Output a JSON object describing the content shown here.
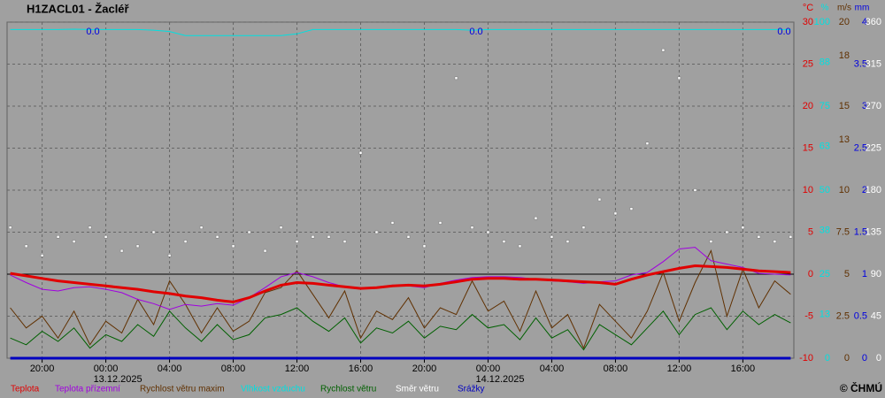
{
  "chart_data": {
    "type": "line",
    "title": "H1ZACL01 - Žacléř",
    "copyright": "© ČHMÚ",
    "x": [
      -6,
      -5,
      -4,
      -3,
      -2,
      -1,
      0,
      1,
      2,
      3,
      4,
      5,
      6,
      7,
      8,
      9,
      10,
      11,
      12,
      13,
      14,
      15,
      16,
      17,
      18,
      19,
      20,
      21,
      22,
      23,
      24,
      25,
      26,
      27,
      28,
      29,
      30,
      31,
      32,
      33,
      34,
      35,
      36,
      37,
      38,
      39,
      40,
      41,
      42,
      43
    ],
    "xlim": [
      -6.2,
      43.2
    ],
    "xticks": [
      {
        "value": -4,
        "label": "20:00"
      },
      {
        "value": 0,
        "label": "00:00"
      },
      {
        "value": 4,
        "label": "04:00"
      },
      {
        "value": 8,
        "label": "08:00"
      },
      {
        "value": 12,
        "label": "12:00"
      },
      {
        "value": 16,
        "label": "16:00"
      },
      {
        "value": 20,
        "label": "20:00"
      },
      {
        "value": 24,
        "label": "00:00"
      },
      {
        "value": 28,
        "label": "04:00"
      },
      {
        "value": 32,
        "label": "08:00"
      },
      {
        "value": 36,
        "label": "12:00"
      },
      {
        "value": 40,
        "label": "16:00"
      }
    ],
    "date_labels": [
      {
        "value": 0,
        "label": "13.12.2025"
      },
      {
        "value": 24,
        "label": "14.12.2025"
      }
    ],
    "y_unit": "°C",
    "y_color": "#e00000",
    "ylim": [
      -10,
      30
    ],
    "yticks": [
      -10,
      -5,
      0,
      5,
      10,
      15,
      20,
      25,
      30
    ],
    "grid": true,
    "extra_axes": [
      {
        "unit": "%",
        "color": "#00e0e0",
        "lim": [
          0,
          100
        ],
        "ticks": [
          0,
          13,
          25,
          38,
          50,
          63,
          75,
          88,
          100
        ]
      },
      {
        "unit": "m/s",
        "color": "#603000",
        "lim": [
          0,
          20
        ],
        "ticks": [
          0,
          2.5,
          5,
          7.5,
          10,
          13,
          15,
          18,
          20
        ]
      },
      {
        "unit": "mm",
        "color": "#0000e0",
        "lim": [
          0,
          4
        ],
        "ticks": [
          0,
          0.5,
          1,
          1.5,
          2,
          2.5,
          3,
          3.5,
          4
        ]
      },
      {
        "color": "#ffffff",
        "lim": [
          0,
          360
        ],
        "ticks": [
          0,
          45,
          90,
          135,
          180,
          225,
          270,
          315,
          360
        ]
      }
    ],
    "precip_labels": [
      "0.0",
      "0.0",
      "0.0"
    ],
    "series": [
      {
        "name": "Teplota",
        "color": "#e00000",
        "axis": "y",
        "style": "thick",
        "values": [
          0.1,
          -0.2,
          -0.5,
          -0.8,
          -1.0,
          -1.2,
          -1.4,
          -1.6,
          -1.8,
          -2.1,
          -2.3,
          -2.6,
          -2.8,
          -3.1,
          -3.3,
          -2.8,
          -2.0,
          -1.3,
          -1.0,
          -1.1,
          -1.3,
          -1.5,
          -1.7,
          -1.6,
          -1.4,
          -1.3,
          -1.4,
          -1.2,
          -0.9,
          -0.6,
          -0.5,
          -0.5,
          -0.6,
          -0.6,
          -0.7,
          -0.8,
          -0.9,
          -1.0,
          -1.2,
          -0.6,
          -0.1,
          0.3,
          0.7,
          1.0,
          0.9,
          0.8,
          0.6,
          0.4,
          0.3,
          0.2
        ]
      },
      {
        "name": "Teplota přízemní",
        "color": "#a000e0",
        "axis": "y",
        "style": "line",
        "values": [
          -0.1,
          -1.0,
          -1.8,
          -2.0,
          -1.6,
          -1.5,
          -1.8,
          -2.2,
          -3.0,
          -3.5,
          -4.2,
          -3.6,
          -3.8,
          -3.5,
          -3.7,
          -2.8,
          -1.6,
          -0.3,
          0.2,
          -0.3,
          -1.0,
          -1.5,
          -1.6,
          -1.6,
          -1.3,
          -1.4,
          -1.6,
          -1.1,
          -0.7,
          -0.4,
          -0.3,
          -0.3,
          -0.4,
          -0.6,
          -0.8,
          -0.9,
          -1.1,
          -0.9,
          -0.8,
          -0.1,
          0.2,
          1.5,
          3.0,
          3.2,
          1.6,
          1.2,
          0.8,
          0.1,
          0.0,
          -0.1
        ]
      },
      {
        "name": "Rychlost větru maxim",
        "color": "#603000",
        "axis": 1,
        "style": "line",
        "values": [
          3.0,
          1.8,
          2.5,
          1.2,
          2.8,
          0.8,
          2.2,
          1.5,
          3.5,
          2.0,
          4.6,
          3.2,
          1.5,
          3.0,
          1.6,
          2.2,
          3.9,
          4.2,
          5.2,
          3.8,
          2.4,
          4.0,
          1.2,
          2.8,
          2.3,
          3.6,
          1.8,
          3.0,
          2.6,
          4.6,
          2.8,
          3.4,
          1.6,
          4.0,
          1.8,
          2.6,
          0.6,
          3.2,
          2.2,
          1.2,
          2.8,
          5.1,
          2.2,
          4.5,
          6.4,
          2.5,
          5.3,
          3.0,
          4.6,
          3.8
        ]
      },
      {
        "name": "Vlhkost vzduchu",
        "color": "#00e0e0",
        "axis": 0,
        "style": "line",
        "values": [
          97.8,
          97.8,
          97.8,
          97.8,
          97.9,
          97.8,
          97.8,
          97.8,
          97.8,
          97.6,
          97.2,
          96.0,
          96.0,
          96.0,
          96.0,
          96.0,
          96.0,
          96.0,
          96.5,
          97.8,
          97.8,
          97.8,
          97.8,
          97.8,
          97.8,
          97.8,
          97.8,
          97.8,
          97.8,
          97.6,
          97.8,
          97.8,
          97.8,
          97.8,
          97.8,
          97.8,
          97.8,
          97.8,
          97.8,
          97.8,
          97.8,
          97.8,
          97.8,
          97.8,
          97.8,
          97.8,
          97.8,
          97.8,
          97.8,
          97.8
        ]
      },
      {
        "name": "Rychlost větru",
        "color": "#006000",
        "axis": 1,
        "style": "line",
        "values": [
          1.2,
          0.8,
          1.6,
          1.0,
          1.8,
          0.6,
          1.4,
          1.0,
          2.0,
          1.3,
          2.8,
          1.8,
          1.0,
          2.0,
          1.1,
          1.4,
          2.4,
          2.6,
          3.0,
          2.2,
          1.6,
          2.4,
          0.9,
          1.8,
          1.5,
          2.2,
          1.2,
          1.9,
          1.7,
          2.6,
          1.8,
          2.0,
          1.1,
          2.4,
          1.2,
          1.7,
          0.5,
          2.0,
          1.4,
          0.8,
          1.8,
          2.8,
          1.4,
          2.6,
          3.0,
          1.7,
          2.8,
          2.0,
          2.6,
          2.1
        ]
      },
      {
        "name": "Směr větru",
        "color": "#ffffff",
        "axis": 3,
        "style": "dots",
        "values": [
          140,
          120,
          110,
          130,
          125,
          140,
          130,
          115,
          120,
          135,
          110,
          125,
          140,
          130,
          120,
          135,
          115,
          140,
          125,
          130,
          130,
          125,
          220,
          135,
          145,
          130,
          120,
          145,
          300,
          140,
          135,
          125,
          120,
          150,
          130,
          125,
          140,
          170,
          155,
          160,
          230,
          330,
          300,
          180,
          125,
          135,
          140,
          130,
          125,
          130
        ]
      },
      {
        "name": "Srážky",
        "color": "#0000c0",
        "axis": 2,
        "style": "line",
        "values": [
          0,
          0,
          0,
          0,
          0,
          0,
          0,
          0,
          0,
          0,
          0,
          0,
          0,
          0,
          0,
          0,
          0,
          0,
          0,
          0,
          0,
          0,
          0,
          0,
          0,
          0,
          0,
          0,
          0,
          0,
          0,
          0,
          0,
          0,
          0,
          0,
          0,
          0,
          0,
          0,
          0,
          0,
          0,
          0,
          0,
          0,
          0,
          0,
          0,
          0
        ]
      }
    ]
  }
}
